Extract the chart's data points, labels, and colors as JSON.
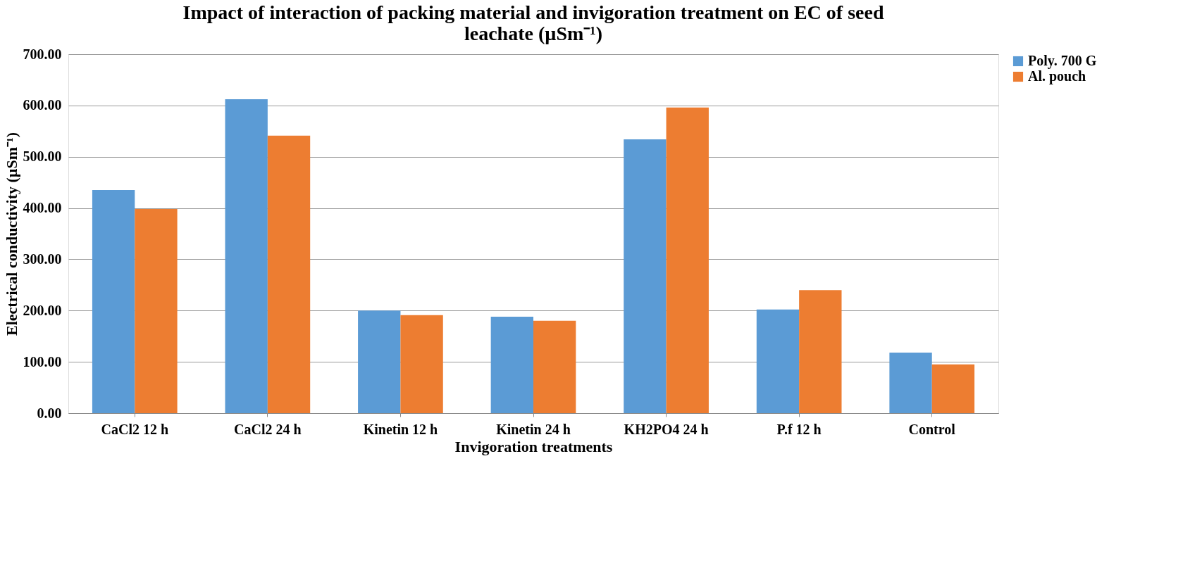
{
  "chart_data": {
    "type": "bar",
    "title": "Impact of interaction of packing material and invigoration treatment on EC of seed leachate (µSm⁻¹)",
    "xlabel": "Invigoration treatments",
    "ylabel": "Electrical conductivity (µSm⁻¹)",
    "categories": [
      "CaCl2 12 h",
      "CaCl2 24 h",
      "Kinetin 12 h",
      "Kinetin 24 h",
      "KH2PO4 24 h",
      "P.f 12 h",
      "Control"
    ],
    "series": [
      {
        "name": "Poly. 700 G",
        "color": "#5b9bd5",
        "values": [
          435,
          612,
          200,
          188,
          534,
          202,
          118
        ]
      },
      {
        "name": "Al. pouch",
        "color": "#ed7d31",
        "values": [
          398,
          541,
          191,
          180,
          596,
          240,
          95
        ]
      }
    ],
    "ylim": [
      0,
      700
    ],
    "yticks": [
      {
        "value": 0,
        "label": "0.00"
      },
      {
        "value": 100,
        "label": "100.00"
      },
      {
        "value": 200,
        "label": "200.00"
      },
      {
        "value": 300,
        "label": "300.00"
      },
      {
        "value": 400,
        "label": "400.00"
      },
      {
        "value": 500,
        "label": "500.00"
      },
      {
        "value": 600,
        "label": "600.00"
      },
      {
        "value": 700,
        "label": "700.00"
      }
    ],
    "grid": "y",
    "legend": "right"
  }
}
